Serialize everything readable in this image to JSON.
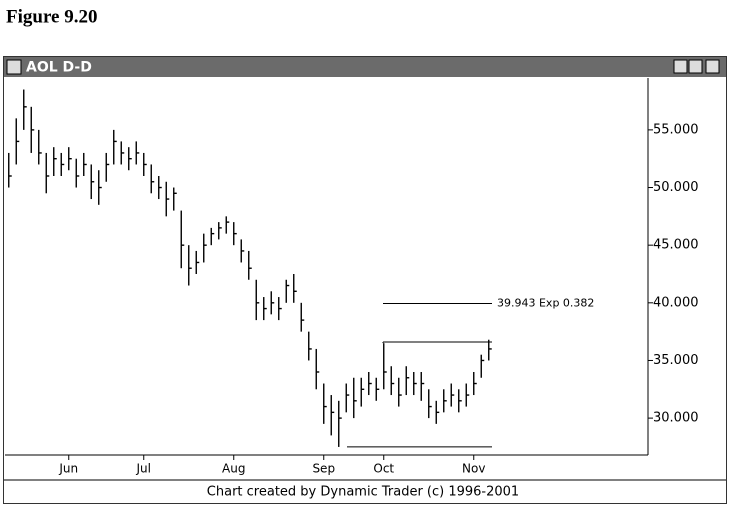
{
  "figure_label": "Figure 9.20",
  "window_title": "AOL D-D",
  "footer": "Chart created by Dynamic Trader (c) 1996-2001",
  "chart_data": {
    "type": "ohlc",
    "color": "#000000",
    "categories": [
      null,
      null,
      null,
      null,
      null,
      null,
      null,
      null,
      "Jun",
      null,
      null,
      null,
      null,
      null,
      null,
      null,
      null,
      null,
      "Jul",
      null,
      null,
      null,
      null,
      null,
      null,
      null,
      null,
      null,
      null,
      null,
      "Aug",
      null,
      null,
      null,
      null,
      null,
      null,
      null,
      null,
      null,
      null,
      null,
      "Sep",
      null,
      null,
      null,
      null,
      null,
      null,
      null,
      "Oct",
      null,
      null,
      null,
      null,
      null,
      null,
      null,
      null,
      null,
      null,
      null,
      "Nov",
      null,
      null
    ],
    "series": [
      {
        "high": [
          53,
          56,
          58.5,
          57,
          55,
          53,
          53.5,
          53,
          53.5,
          52.5,
          53,
          52,
          51.5,
          53,
          55,
          54,
          53.5,
          54,
          53,
          52,
          51,
          50.5,
          50,
          48,
          45,
          44.5,
          46,
          46.5,
          47,
          47.5,
          47,
          45.5,
          44.5,
          42,
          40.5,
          41,
          40.5,
          42,
          42.5,
          40,
          37.5,
          36,
          33,
          32,
          31.5,
          33,
          33.5,
          33.5,
          34,
          33.5,
          36.5,
          34.5,
          33.5,
          34.5,
          34,
          34,
          32.5,
          31.5,
          32.5,
          33,
          32.5,
          33,
          34,
          35.5,
          36.8
        ],
        "low": [
          50,
          52,
          55,
          53,
          52,
          49.5,
          51,
          51,
          51.5,
          50,
          51,
          49,
          48.5,
          50.5,
          52,
          52,
          51.5,
          52,
          51,
          49.5,
          49,
          47.5,
          48,
          43,
          41.5,
          42.5,
          43.5,
          45,
          45.5,
          46,
          45,
          43.5,
          42,
          38.5,
          38.5,
          39,
          38.5,
          40,
          40,
          37.5,
          35,
          32.5,
          29.5,
          28.5,
          27.5,
          30.5,
          30,
          31,
          32,
          31.5,
          32.5,
          32,
          31,
          32,
          32,
          31.5,
          30,
          29.5,
          30.5,
          31,
          30.5,
          31,
          32,
          33.5,
          35
        ],
        "close": [
          51,
          54,
          57,
          55,
          53,
          51,
          52.5,
          52,
          52.5,
          51,
          52,
          50.5,
          50,
          52,
          54,
          53,
          52.5,
          53,
          52,
          50.5,
          50,
          49,
          49.5,
          45,
          43,
          43.5,
          45,
          46,
          46.5,
          47,
          46,
          44.5,
          43,
          40,
          39.5,
          40,
          39.5,
          41.5,
          41,
          38.5,
          36,
          34,
          31,
          30.5,
          30,
          32,
          31.5,
          32.5,
          33,
          32.5,
          34,
          33,
          32,
          33.5,
          33,
          33,
          31,
          30.5,
          31.5,
          32,
          31.5,
          32,
          33,
          35,
          36
        ]
      }
    ],
    "levels": [
      36.6,
      27.5
    ],
    "annotation": {
      "text": "39.943 Exp 0.382",
      "value": 39.943
    },
    "ylim": [
      26.8,
      59.5
    ],
    "yticks": [
      {
        "value": 30,
        "label": "30.000"
      },
      {
        "value": 35,
        "label": "35.000"
      },
      {
        "value": 40,
        "label": "40.000"
      },
      {
        "value": 45,
        "label": "45.000"
      },
      {
        "value": 50,
        "label": "50.000"
      },
      {
        "value": 55,
        "label": "55.000"
      }
    ]
  }
}
